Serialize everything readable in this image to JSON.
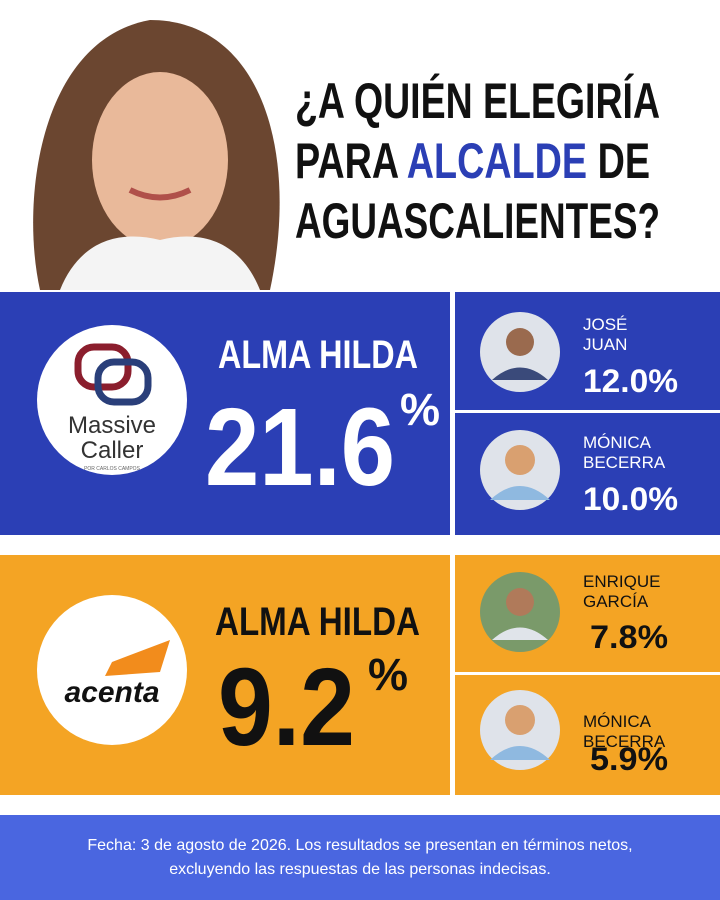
{
  "title": {
    "line1": "¿A QUIÉN ELEGIRÍA",
    "line2": [
      "PARA",
      "ALCALDE",
      "DE"
    ],
    "line3": "AGUASCALIENTES?"
  },
  "polls": [
    {
      "pollster": {
        "name": [
          "Massive",
          "Caller"
        ],
        "tagline": "POR CARLOS CAMPOS"
      },
      "leader": {
        "name": "ALMA HILDA",
        "value": "21.6",
        "unit": "%"
      },
      "others": [
        {
          "name": [
            "JOSÉ",
            "JUAN"
          ],
          "value": "12.0%"
        },
        {
          "name": [
            "MÓNICA",
            "BECERRA"
          ],
          "value": "10.0%"
        }
      ]
    },
    {
      "pollster": {
        "name": [
          "acenta"
        ]
      },
      "leader": {
        "name": "ALMA HILDA",
        "value": "9.2",
        "unit": "%"
      },
      "others": [
        {
          "name": [
            "ENRIQUE",
            "GARCÍA"
          ],
          "value": "7.8%"
        },
        {
          "name": [
            "MÓNICA",
            "BECERRA"
          ],
          "value": "5.9%"
        }
      ]
    }
  ],
  "footer": [
    "Fecha: 3 de agosto de 2026. Los resultados se presentan en términos netos,",
    "excluyendo las respuestas de las personas indecisas."
  ]
}
